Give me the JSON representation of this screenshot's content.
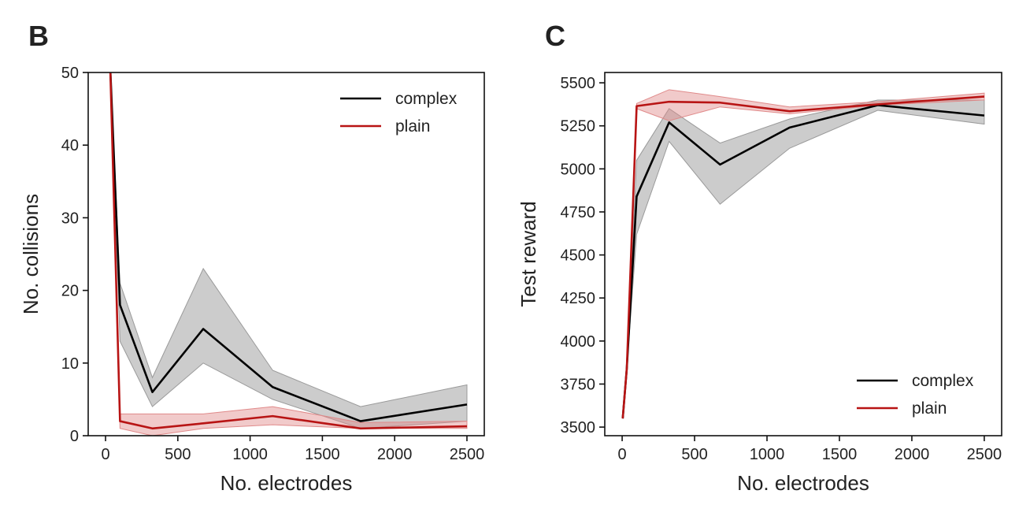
{
  "chart_data": [
    {
      "panel": "B",
      "type": "line",
      "xlabel": "No. electrodes",
      "ylabel": "No. collisions",
      "xlim": [
        -120,
        2620
      ],
      "ylim": [
        0,
        50
      ],
      "xticks": [
        0,
        500,
        1000,
        1500,
        2000,
        2500
      ],
      "yticks": [
        0,
        10,
        20,
        30,
        40,
        50
      ],
      "legend": "top-right",
      "series": [
        {
          "name": "complex",
          "color": "#000000",
          "x": [
            32,
            100,
            324,
            676,
            1156,
            1764,
            2500
          ],
          "y": [
            51,
            18,
            6,
            14.7,
            6.7,
            2,
            4.3
          ],
          "lower": [
            51,
            13,
            4,
            10,
            5,
            1,
            2
          ],
          "upper": [
            51,
            21,
            8,
            23,
            9,
            4,
            7
          ]
        },
        {
          "name": "plain",
          "color": "#b81414",
          "x": [
            32,
            100,
            324,
            676,
            1156,
            1764,
            2500
          ],
          "y": [
            51,
            2,
            1,
            1.7,
            2.7,
            1,
            1.3
          ],
          "lower": [
            51,
            1,
            0,
            1,
            1.5,
            1,
            1
          ],
          "upper": [
            51,
            3,
            3,
            3,
            4,
            1.8,
            2
          ]
        }
      ]
    },
    {
      "panel": "C",
      "type": "line",
      "xlabel": "No. electrodes",
      "ylabel": "Test reward",
      "xlim": [
        -120,
        2620
      ],
      "ylim": [
        3450,
        5560
      ],
      "xticks": [
        0,
        500,
        1000,
        1500,
        2000,
        2500
      ],
      "yticks": [
        3500,
        3750,
        4000,
        4250,
        4500,
        4750,
        5000,
        5250,
        5500
      ],
      "legend": "bottom-right",
      "series": [
        {
          "name": "complex",
          "color": "#000000",
          "x": [
            4,
            32,
            100,
            324,
            676,
            1156,
            1764,
            2500
          ],
          "y": [
            3550,
            3840,
            4840,
            5270,
            5025,
            5240,
            5370,
            5310
          ],
          "lower": [
            3550,
            3840,
            4620,
            5160,
            4795,
            5120,
            5340,
            5260
          ],
          "upper": [
            3550,
            3840,
            5050,
            5350,
            5150,
            5290,
            5400,
            5400
          ]
        },
        {
          "name": "plain",
          "color": "#b81414",
          "x": [
            4,
            32,
            100,
            324,
            676,
            1156,
            1764,
            2500
          ],
          "y": [
            3550,
            3840,
            5365,
            5390,
            5385,
            5335,
            5375,
            5420
          ],
          "lower": [
            3550,
            3840,
            5350,
            5280,
            5360,
            5320,
            5370,
            5400
          ],
          "upper": [
            3550,
            3840,
            5380,
            5460,
            5420,
            5360,
            5390,
            5440
          ]
        }
      ]
    }
  ]
}
